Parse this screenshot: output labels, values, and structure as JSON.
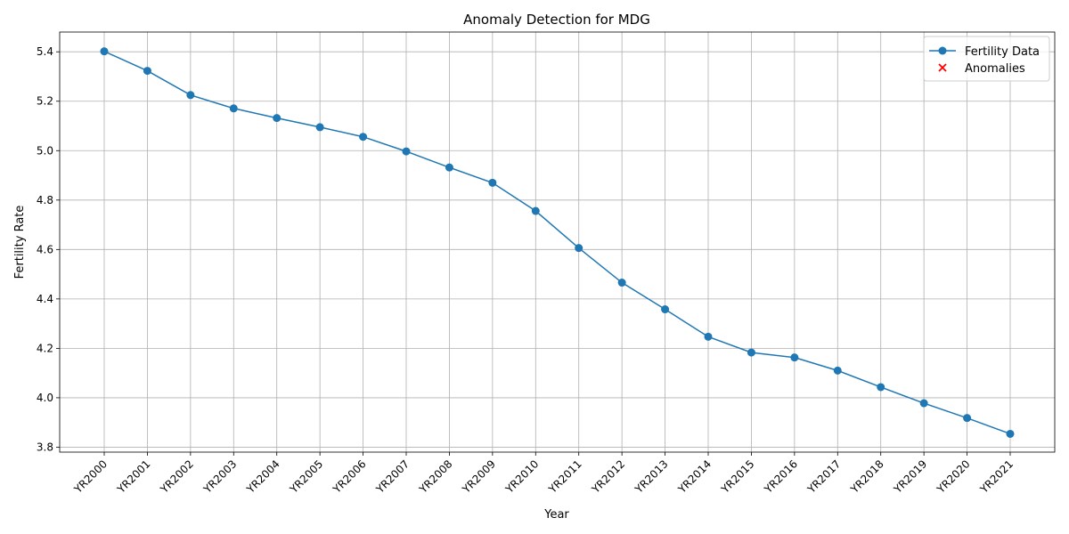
{
  "chart_data": {
    "type": "line",
    "title": "Anomaly Detection for MDG",
    "xlabel": "Year",
    "ylabel": "Fertility Rate",
    "categories": [
      "YR2000",
      "YR2001",
      "YR2002",
      "YR2003",
      "YR2004",
      "YR2005",
      "YR2006",
      "YR2007",
      "YR2008",
      "YR2009",
      "YR2010",
      "YR2011",
      "YR2012",
      "YR2013",
      "YR2014",
      "YR2015",
      "YR2016",
      "YR2017",
      "YR2018",
      "YR2019",
      "YR2020",
      "YR2021"
    ],
    "series": [
      {
        "name": "Fertility Data",
        "color": "#1f77b4",
        "marker": "circle",
        "values": [
          5.402,
          5.323,
          5.225,
          5.171,
          5.132,
          5.095,
          5.056,
          4.997,
          4.932,
          4.87,
          4.756,
          4.606,
          4.466,
          4.358,
          4.247,
          4.183,
          4.163,
          4.11,
          4.043,
          3.978,
          3.918,
          3.854
        ]
      }
    ],
    "anomalies": {
      "name": "Anomalies",
      "color": "#ff0000",
      "marker": "x",
      "points": []
    },
    "ylim": [
      3.78,
      5.48
    ],
    "yticks": [
      3.8,
      4.0,
      4.2,
      4.4,
      4.6,
      4.8,
      5.0,
      5.2,
      5.4
    ],
    "grid": true,
    "legend_position": "top-right"
  }
}
